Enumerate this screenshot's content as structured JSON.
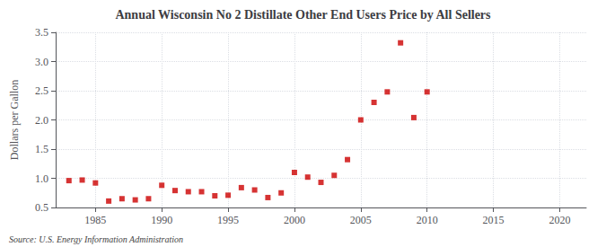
{
  "chart_data": {
    "type": "scatter",
    "title": "Annual Wisconsin No 2 Distillate Other End Users Price by All Sellers",
    "ylabel": "Dollars per Gallon",
    "annotations": [
      "Source: U.S. Energy Information Administration"
    ],
    "x": [
      1983,
      1984,
      1985,
      1986,
      1987,
      1988,
      1989,
      1990,
      1991,
      1992,
      1993,
      1994,
      1995,
      1996,
      1997,
      1998,
      1999,
      2000,
      2001,
      2002,
      2003,
      2004,
      2005,
      2006,
      2007,
      2008,
      2009,
      2010
    ],
    "values": [
      0.96,
      0.97,
      0.92,
      0.61,
      0.65,
      0.63,
      0.65,
      0.88,
      0.79,
      0.77,
      0.77,
      0.7,
      0.71,
      0.84,
      0.8,
      0.67,
      0.75,
      1.1,
      1.02,
      0.93,
      1.05,
      1.32,
      2.0,
      2.3,
      2.48,
      3.32,
      2.04,
      2.48
    ],
    "color": "#cc0000",
    "marker": "square",
    "xlim": [
      1982,
      2022
    ],
    "ylim": [
      0.5,
      3.5
    ],
    "xticks": [
      1985,
      1990,
      1995,
      2000,
      2005,
      2010,
      2015,
      2020
    ],
    "yticks": [
      0.5,
      {
        "value": 1.0,
        "label": "1.0"
      },
      1.5,
      {
        "value": 2.0,
        "label": "2.0"
      },
      2.5,
      {
        "value": 3.0,
        "label": "3.0"
      },
      3.5
    ],
    "grid": true
  }
}
